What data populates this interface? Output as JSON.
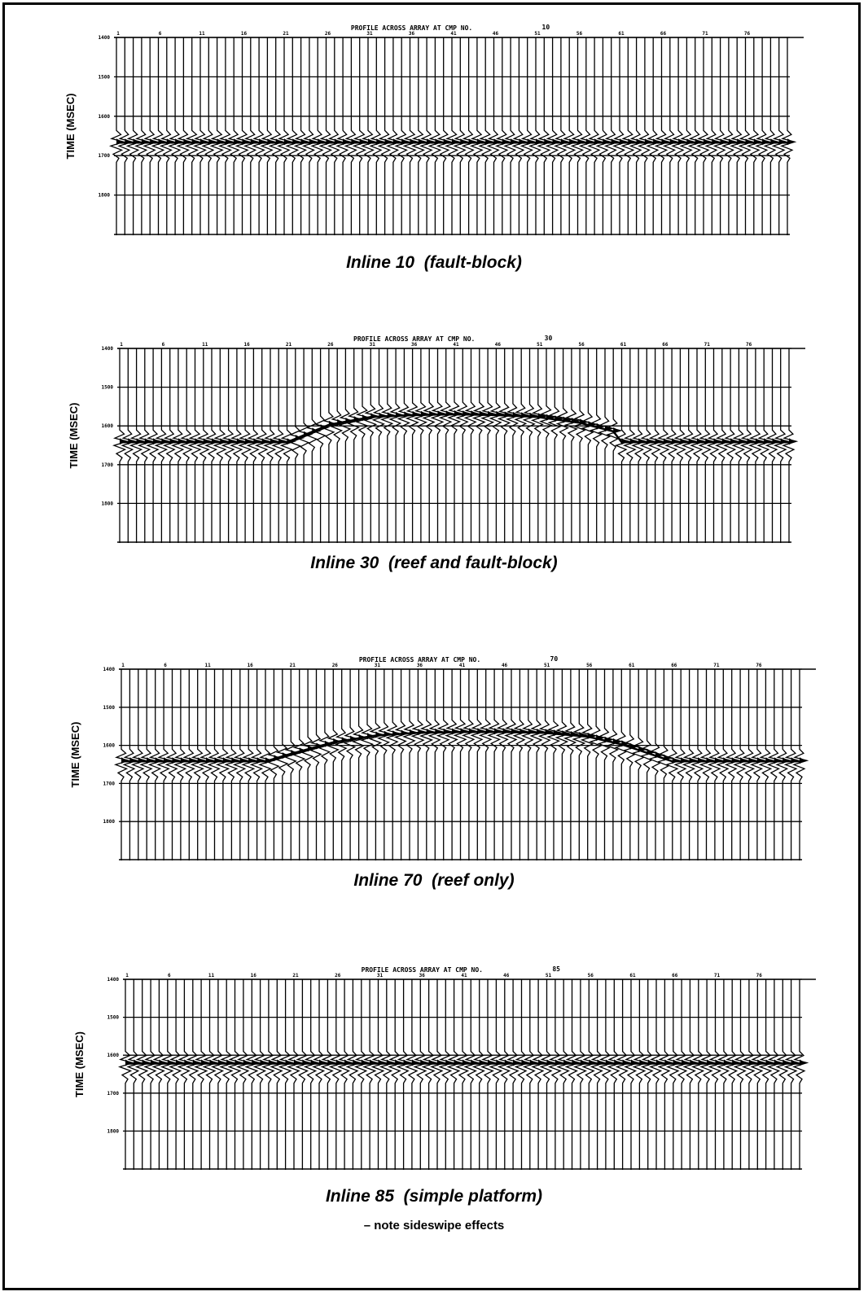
{
  "chart_data": [
    {
      "type": "line",
      "title": "PROFILE ACROSS ARRAY AT CMP NO.",
      "cmp_number": "10",
      "caption": "Inline 10  (fault-block)",
      "ylabel": "TIME (MSEC)",
      "y_ticks": [
        "1400",
        "1500",
        "1600",
        "1700",
        "1800"
      ],
      "ylim": [
        1400,
        1900
      ],
      "y_inverted": true,
      "trace_labels": [
        "1",
        "6",
        "11",
        "16",
        "21",
        "26",
        "31",
        "36",
        "41",
        "46",
        "51",
        "56",
        "61",
        "66",
        "71",
        "76"
      ],
      "trace_count": 81,
      "series": [
        {
          "x": [
            1,
            81
          ],
          "y": [
            1665,
            1665
          ]
        }
      ]
    },
    {
      "type": "line",
      "title": "PROFILE ACROSS ARRAY AT CMP NO.",
      "cmp_number": "30",
      "caption": "Inline 30  (reef and fault-block)",
      "ylabel": "TIME (MSEC)",
      "y_ticks": [
        "1400",
        "1500",
        "1600",
        "1700",
        "1800"
      ],
      "ylim": [
        1400,
        1900
      ],
      "y_inverted": true,
      "trace_labels": [
        "1",
        "6",
        "11",
        "16",
        "21",
        "26",
        "31",
        "36",
        "41",
        "46",
        "51",
        "56",
        "61",
        "66",
        "71",
        "76"
      ],
      "trace_count": 81,
      "series": [
        {
          "x": [
            1,
            14,
            21,
            26,
            31,
            36,
            41,
            46,
            51,
            56,
            60,
            61,
            66,
            71,
            76,
            81
          ],
          "y": [
            1640,
            1640,
            1640,
            1595,
            1575,
            1570,
            1568,
            1570,
            1575,
            1590,
            1612,
            1640,
            1640,
            1640,
            1640,
            1640
          ]
        }
      ]
    },
    {
      "type": "line",
      "title": "PROFILE ACROSS ARRAY AT CMP NO.",
      "cmp_number": "70",
      "caption": "Inline 70  (reef only)",
      "ylabel": "TIME (MSEC)",
      "y_ticks": [
        "1400",
        "1500",
        "1600",
        "1700",
        "1800"
      ],
      "ylim": [
        1400,
        1900
      ],
      "y_inverted": true,
      "trace_labels": [
        "1",
        "6",
        "11",
        "16",
        "21",
        "26",
        "31",
        "36",
        "41",
        "46",
        "51",
        "56",
        "61",
        "66",
        "71",
        "76"
      ],
      "trace_count": 81,
      "series": [
        {
          "x": [
            1,
            18,
            21,
            26,
            31,
            36,
            41,
            46,
            51,
            56,
            60,
            66,
            71,
            76,
            81
          ],
          "y": [
            1640,
            1640,
            1620,
            1590,
            1572,
            1565,
            1563,
            1563,
            1565,
            1575,
            1595,
            1640,
            1640,
            1640,
            1640
          ]
        }
      ]
    },
    {
      "type": "line",
      "title": "PROFILE ACROSS ARRAY AT CMP NO.",
      "cmp_number": "85",
      "caption": "Inline 85  (simple platform)",
      "note": "– note sideswipe effects",
      "ylabel": "TIME (MSEC)",
      "y_ticks": [
        "1400",
        "1500",
        "1600",
        "1700",
        "1800"
      ],
      "ylim": [
        1400,
        1900
      ],
      "y_inverted": true,
      "trace_labels": [
        "1",
        "6",
        "11",
        "16",
        "21",
        "26",
        "31",
        "36",
        "41",
        "46",
        "51",
        "56",
        "61",
        "66",
        "71",
        "76"
      ],
      "trace_count": 81,
      "series": [
        {
          "x": [
            1,
            81
          ],
          "y": [
            1620,
            1620
          ]
        }
      ]
    }
  ]
}
